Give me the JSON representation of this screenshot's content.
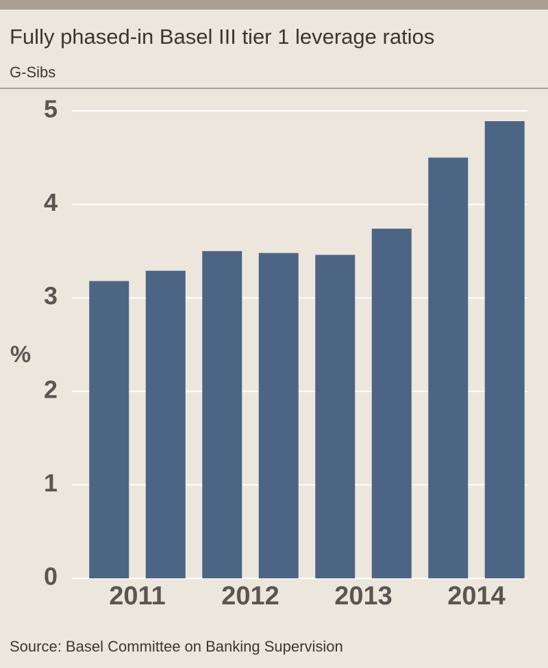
{
  "chart_data": {
    "type": "bar",
    "title": "Fully phased-in Basel III tier 1 leverage ratios",
    "subtitle": "G-Sibs",
    "y_label": "%",
    "source": "Source: Basel Committee on Banking Supervision",
    "categories": [
      "2011",
      null,
      "2012",
      null,
      "2013",
      null,
      "2014",
      null
    ],
    "values": [
      3.18,
      3.29,
      3.5,
      3.48,
      3.46,
      3.74,
      4.5,
      4.89
    ],
    "color": "#4d6584",
    "ylim": [
      0,
      5
    ],
    "yticks": [
      0,
      1,
      2,
      3,
      4,
      5
    ],
    "grid": true
  }
}
